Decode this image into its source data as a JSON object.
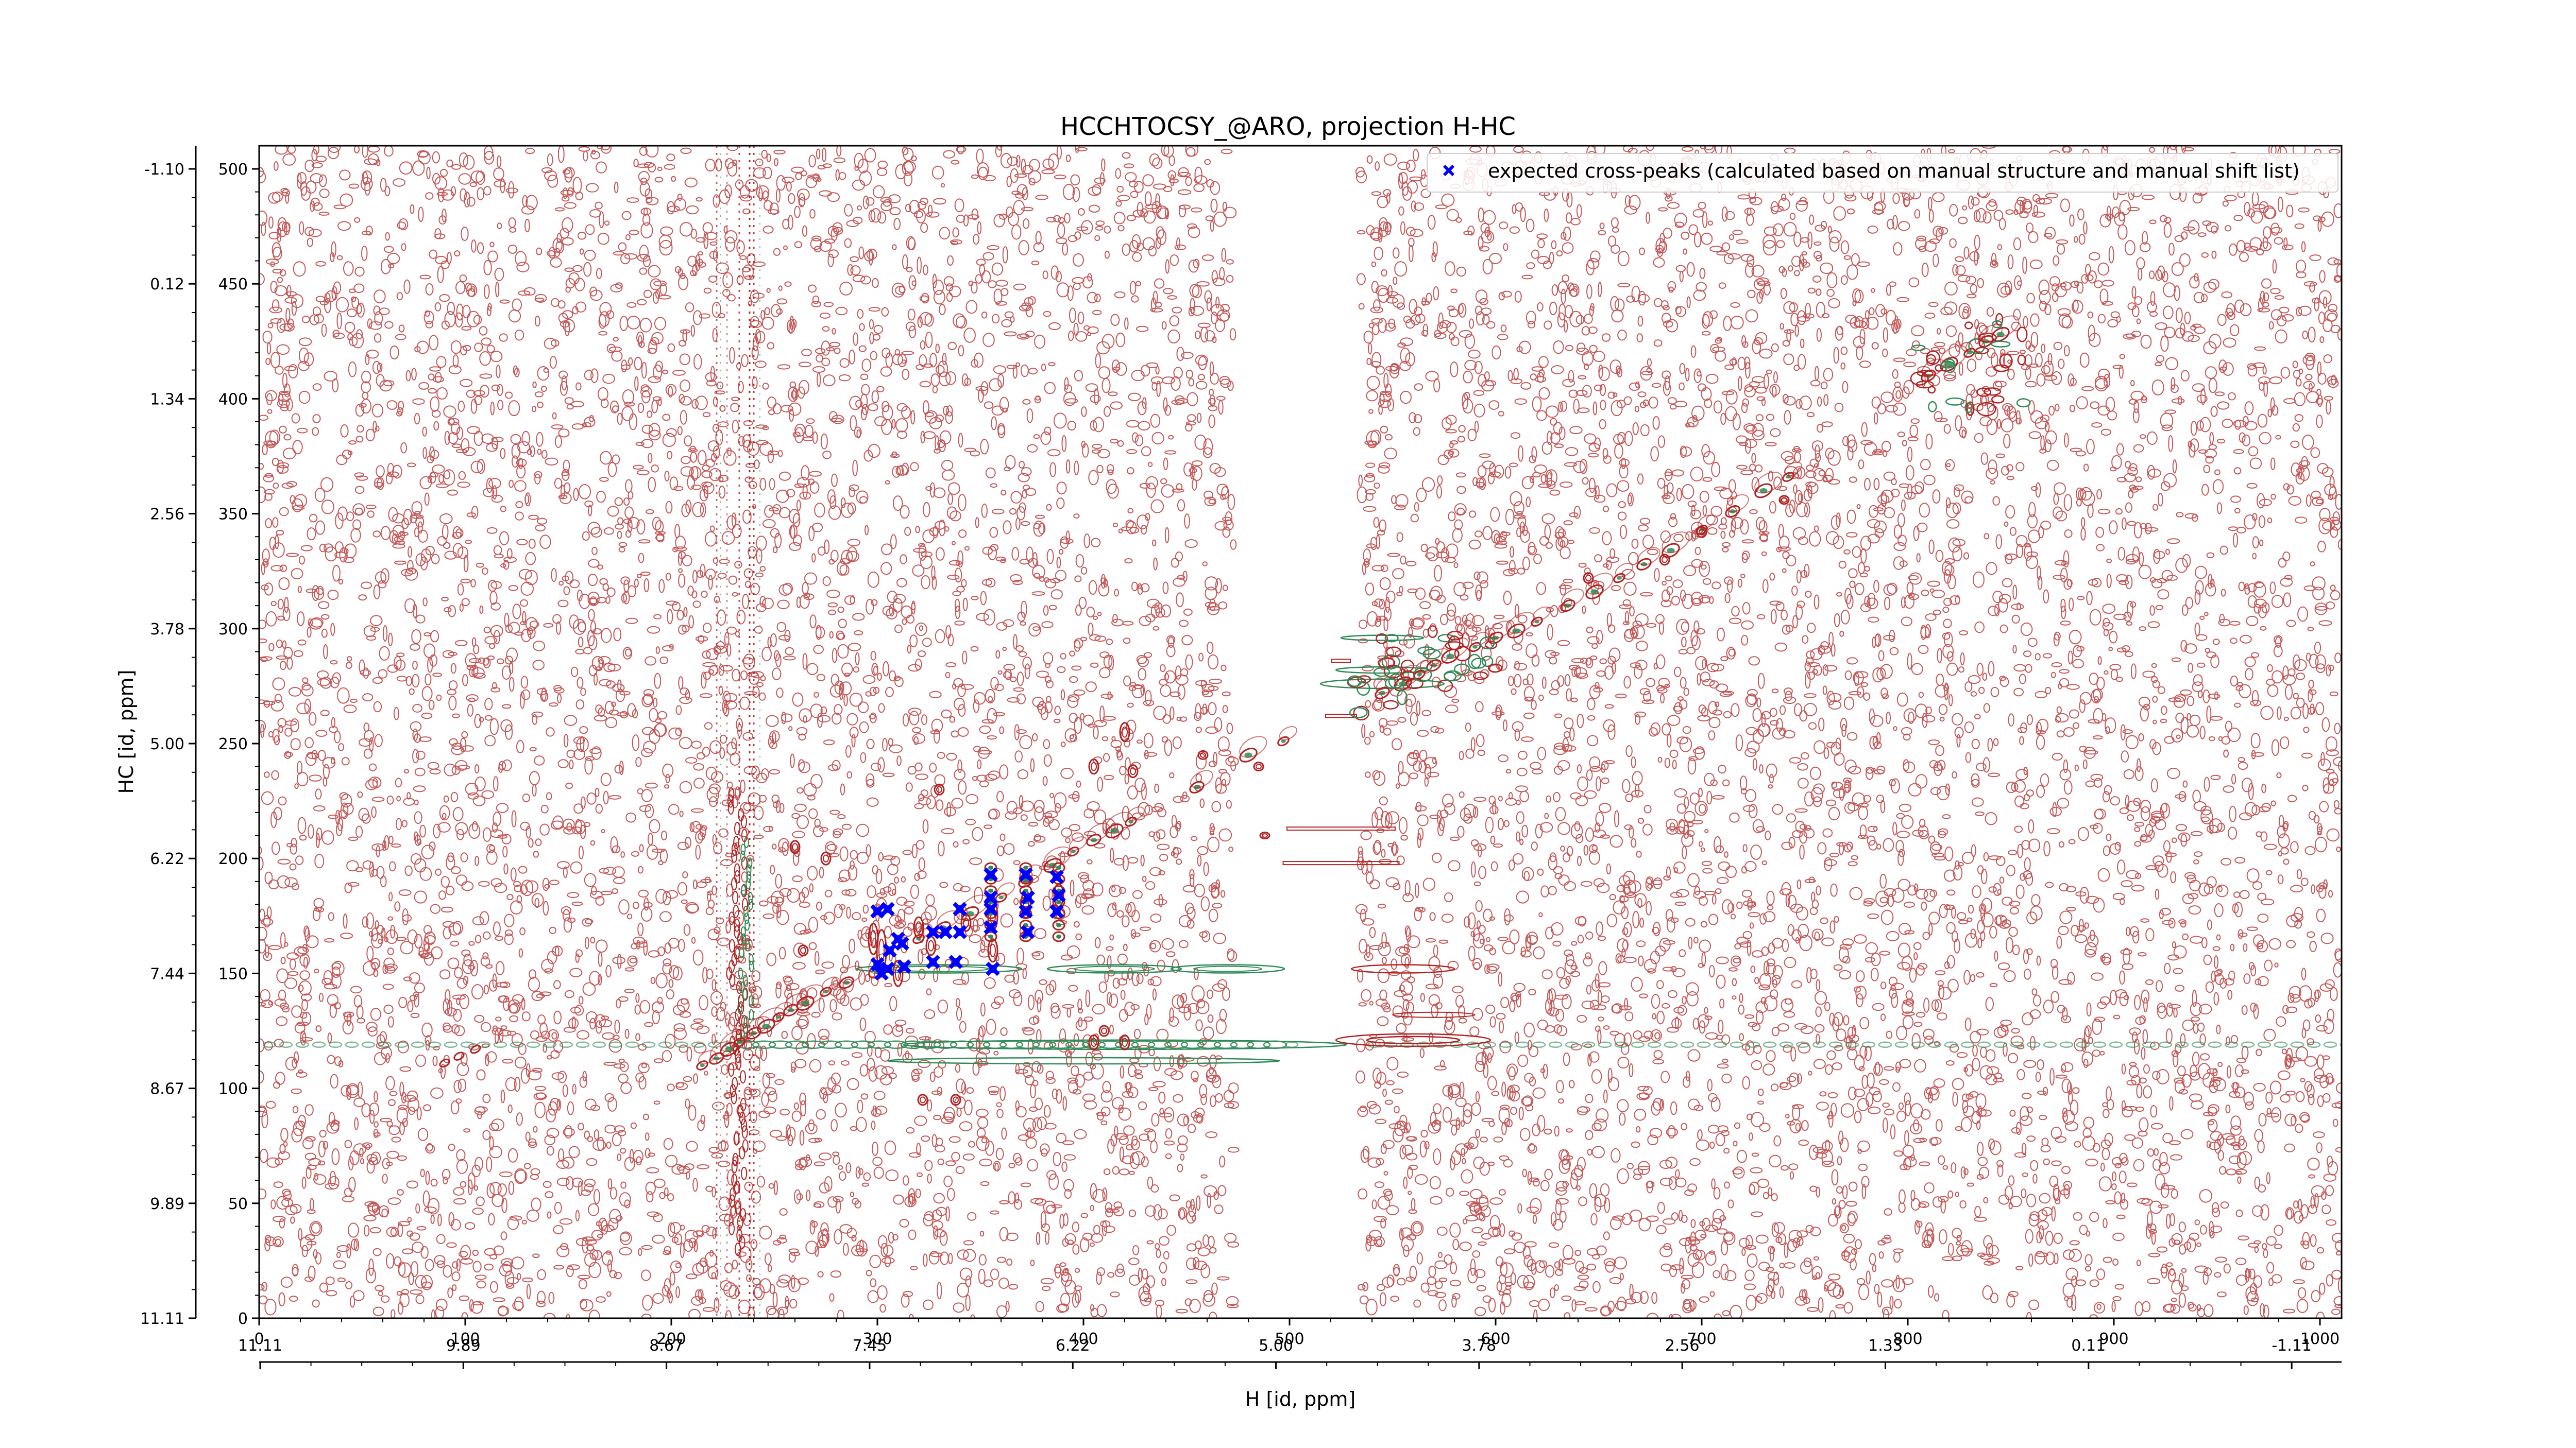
{
  "chart_data": {
    "type": "heatmap",
    "title": "HCCHTOCSY_@ARO, projection H-HC",
    "xlabel": "H [id, ppm]",
    "ylabel": "HC [id, ppm]",
    "grid": false,
    "legend_position": "top-right",
    "x_index_range": [
      0,
      1020
    ],
    "y_index_range": [
      0,
      510
    ],
    "x_index_ticks": [
      "0",
      "100",
      "200",
      "300",
      "400",
      "500",
      "600",
      "700",
      "800",
      "900",
      "1000"
    ],
    "x_ppm_ticks": [
      "11.11",
      "9.89",
      "8.67",
      "7.45",
      "6.22",
      "5.00",
      "3.78",
      "2.56",
      "1.33",
      "0.11",
      "-1.11"
    ],
    "y_index_ticks": [
      "0",
      "50",
      "100",
      "150",
      "200",
      "250",
      "300",
      "350",
      "400",
      "450",
      "500"
    ],
    "y_ppm_ticks": [
      "11.11",
      "9.89",
      "8.67",
      "7.44",
      "6.22",
      "5.00",
      "3.78",
      "2.56",
      "1.34",
      "0.12",
      "-1.10"
    ],
    "series": [
      {
        "name": "expected cross-peaks (calculated based on manual structure and manual shift list)",
        "color": "#0000ff",
        "marker": "x",
        "points": [
          [
            300,
            177
          ],
          [
            305,
            178
          ],
          [
            300,
            154
          ],
          [
            302,
            150
          ],
          [
            305,
            152
          ],
          [
            310,
            165
          ],
          [
            312,
            163
          ],
          [
            306,
            160
          ],
          [
            313,
            153
          ],
          [
            327,
            168
          ],
          [
            333,
            168
          ],
          [
            327,
            155
          ],
          [
            338,
            155
          ],
          [
            340,
            168
          ],
          [
            340,
            178
          ],
          [
            355,
            193
          ],
          [
            355,
            183
          ],
          [
            355,
            178
          ],
          [
            355,
            170
          ],
          [
            356,
            152
          ],
          [
            372,
            193
          ],
          [
            373,
            183
          ],
          [
            372,
            177
          ],
          [
            373,
            168
          ],
          [
            387,
            192
          ],
          [
            388,
            184
          ],
          [
            387,
            177
          ]
        ]
      }
    ],
    "colors": {
      "positive_contours": "#b22222",
      "negative_contours": "#2e8b57",
      "expected_marker": "#0000ff"
    }
  }
}
